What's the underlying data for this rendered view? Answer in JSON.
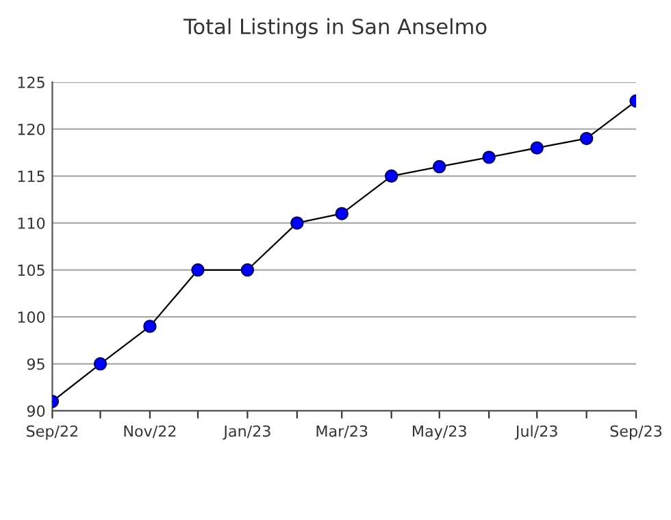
{
  "chart_data": {
    "type": "line",
    "title": "Total Listings in San Anselmo",
    "x": [
      "2022-09",
      "2022-10",
      "2022-11",
      "2022-12",
      "2023-01",
      "2023-02",
      "2023-03",
      "2023-04",
      "2023-05",
      "2023-06",
      "2023-07",
      "2023-08",
      "2023-09"
    ],
    "series": [
      {
        "color": "#0000ff",
        "values": [
          91,
          95,
          99,
          105,
          105,
          110,
          111,
          115,
          116,
          117,
          118,
          119,
          123
        ]
      }
    ],
    "xlim": [
      "2022-09",
      "2023-09"
    ],
    "xticks": [
      {
        "value": "2022-09",
        "label": "Sep/22"
      },
      {
        "value": "2022-10",
        "label": null
      },
      {
        "value": "2022-11",
        "label": "Nov/22"
      },
      {
        "value": "2022-12",
        "label": null
      },
      {
        "value": "2023-01",
        "label": "Jan/23"
      },
      {
        "value": "2023-02",
        "label": null
      },
      {
        "value": "2023-03",
        "label": "Mar/23"
      },
      {
        "value": "2023-04",
        "label": null
      },
      {
        "value": "2023-05",
        "label": "May/23"
      },
      {
        "value": "2023-06",
        "label": null
      },
      {
        "value": "2023-07",
        "label": "Jul/23"
      },
      {
        "value": "2023-08",
        "label": null
      },
      {
        "value": "2023-09",
        "label": "Sep/23"
      }
    ],
    "ylim": [
      90,
      125
    ],
    "yticks": [
      90,
      95,
      100,
      105,
      110,
      115,
      120,
      125
    ],
    "grid": "y",
    "marker": "circle",
    "line_style": "solid"
  }
}
